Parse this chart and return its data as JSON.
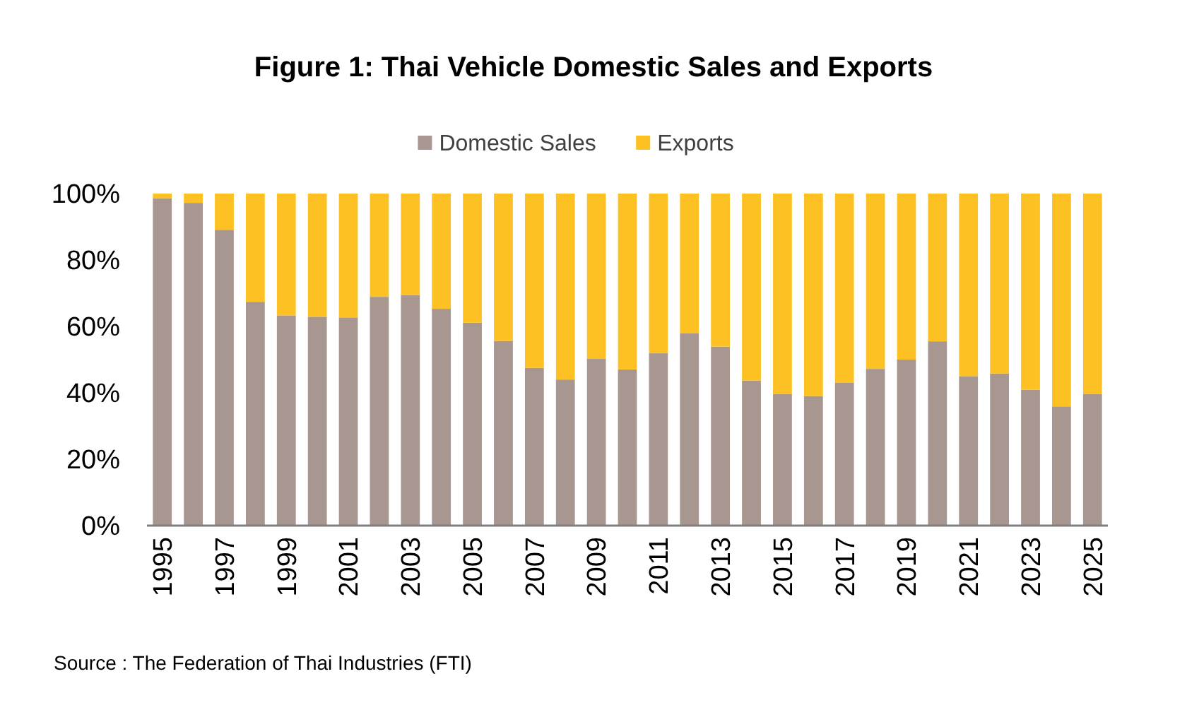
{
  "chart_data": {
    "type": "bar",
    "title": "Figure 1: Thai Vehicle Domestic Sales and Exports",
    "stacked": true,
    "legend": "top",
    "categories": [
      "1995",
      null,
      "1997",
      null,
      "1999",
      null,
      "2001",
      null,
      "2003",
      null,
      "2005",
      null,
      "2007",
      null,
      "2009",
      null,
      "2011",
      null,
      "2013",
      null,
      "2015",
      null,
      "2017",
      null,
      "2019",
      null,
      "2021",
      null,
      "2023",
      null,
      "2025"
    ],
    "series": [
      {
        "name": "Domestic Sales",
        "color": "#a89690",
        "values": [
          98.6,
          97.2,
          89.1,
          67.4,
          63.3,
          62.9,
          62.7,
          68.9,
          69.4,
          65.3,
          61.1,
          55.6,
          47.5,
          44.0,
          50.2,
          47.0,
          51.9,
          58.0,
          53.9,
          43.7,
          39.7,
          39.0,
          43.1,
          47.2,
          50.0,
          55.5,
          45.0,
          45.8,
          40.9,
          35.9,
          39.7
        ]
      },
      {
        "name": "Exports",
        "color": "#fdc123",
        "values": [
          1.4,
          2.8,
          10.9,
          32.6,
          36.7,
          37.1,
          37.3,
          31.1,
          30.6,
          34.7,
          38.9,
          44.4,
          52.5,
          56.0,
          49.8,
          53.0,
          48.1,
          42.0,
          46.1,
          56.3,
          60.3,
          61.0,
          56.9,
          52.8,
          50.0,
          44.5,
          55.0,
          54.2,
          59.1,
          64.1,
          60.3
        ]
      }
    ],
    "ylim": [
      0,
      100
    ],
    "yticks": [
      {
        "value": 0,
        "label": "0%"
      },
      {
        "value": 20,
        "label": "20%"
      },
      {
        "value": 40,
        "label": "40%"
      },
      {
        "value": 60,
        "label": "60%"
      },
      {
        "value": 80,
        "label": "80%"
      },
      {
        "value": 100,
        "label": "100%"
      }
    ],
    "annotations": [
      "Source : The Federation of Thai Industries (FTI)"
    ]
  }
}
